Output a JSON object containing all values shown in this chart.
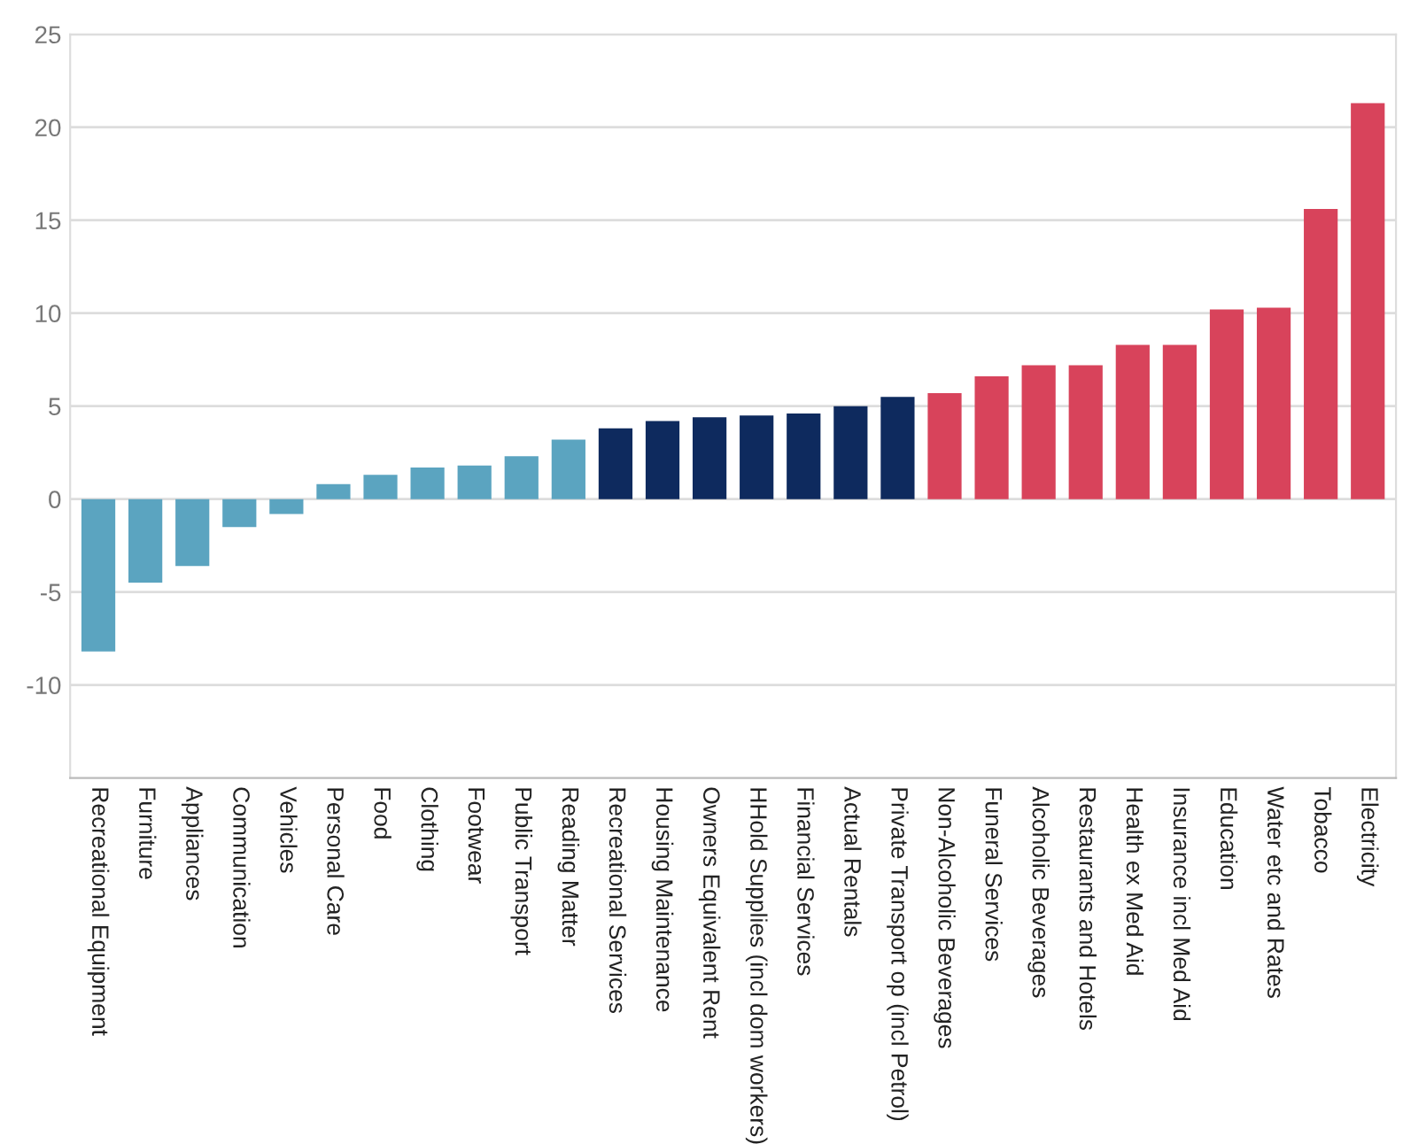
{
  "chart_data": {
    "type": "bar",
    "categories": [
      "Recreational Equipment",
      "Furniture",
      "Appliances",
      "Communication",
      "Vehicles",
      "Personal Care",
      "Food",
      "Clothing",
      "Footwear",
      "Public Transport",
      "Reading Matter",
      "Recreational Services",
      "Housing Maintenance",
      "Owners Equivalent Rent",
      "HHold Supplies (incl dom workers)",
      "Financial Services",
      "Actual Rentals",
      "Private Transport op (incl Petrol)",
      "Non-Alcoholic Beverages",
      "Funeral Services",
      "Alcoholic Beverages",
      "Restaurants and Hotels",
      "Health ex Med Aid",
      "Insurance incl Med Aid",
      "Education",
      "Water etc and Rates",
      "Tobacco",
      "Electricity"
    ],
    "values": [
      -8.2,
      -4.5,
      -3.6,
      -1.5,
      -0.8,
      0.8,
      1.3,
      1.7,
      1.8,
      2.3,
      3.2,
      3.8,
      4.2,
      4.4,
      4.5,
      4.6,
      5.0,
      5.5,
      5.7,
      6.6,
      7.2,
      7.2,
      8.3,
      8.3,
      10.2,
      10.3,
      15.6,
      21.3
    ],
    "colors": [
      "#5ba4c0",
      "#5ba4c0",
      "#5ba4c0",
      "#5ba4c0",
      "#5ba4c0",
      "#5ba4c0",
      "#5ba4c0",
      "#5ba4c0",
      "#5ba4c0",
      "#5ba4c0",
      "#5ba4c0",
      "#0e2a5e",
      "#0e2a5e",
      "#0e2a5e",
      "#0e2a5e",
      "#0e2a5e",
      "#0e2a5e",
      "#0e2a5e",
      "#d8435b",
      "#d8435b",
      "#d8435b",
      "#d8435b",
      "#d8435b",
      "#d8435b",
      "#d8435b",
      "#d8435b",
      "#d8435b",
      "#d8435b"
    ],
    "ylim": [
      -15,
      25
    ],
    "yticks": [
      -10,
      -5,
      0,
      5,
      10,
      15,
      20,
      25
    ],
    "grid": "y"
  }
}
